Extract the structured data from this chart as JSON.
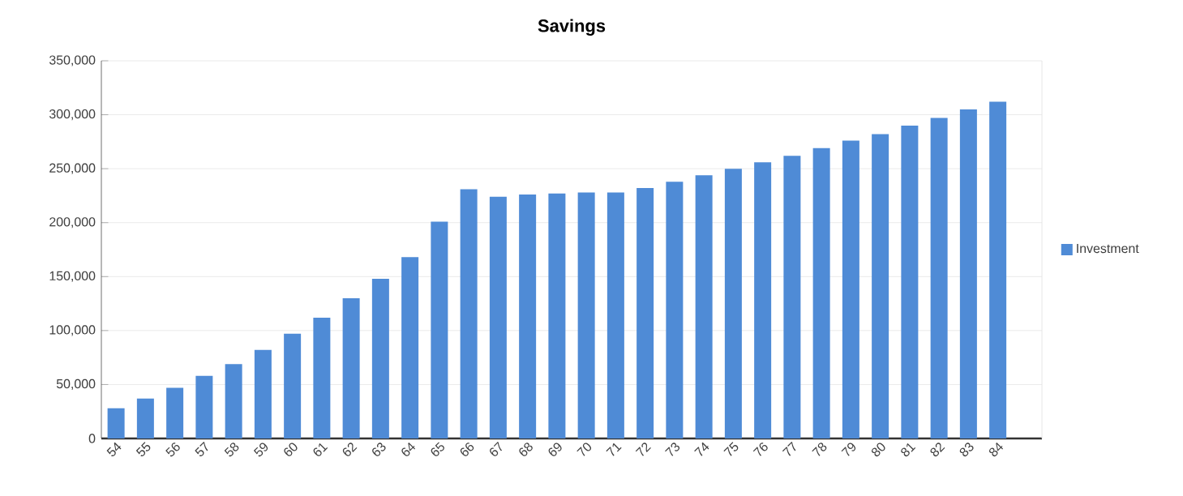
{
  "chart_data": {
    "type": "bar",
    "title": "Savings",
    "categories": [
      "54",
      "55",
      "56",
      "57",
      "58",
      "59",
      "60",
      "61",
      "62",
      "63",
      "64",
      "65",
      "66",
      "67",
      "68",
      "69",
      "70",
      "71",
      "72",
      "73",
      "74",
      "75",
      "76",
      "77",
      "78",
      "79",
      "80",
      "81",
      "82",
      "83",
      "84"
    ],
    "series": [
      {
        "name": "Investment",
        "color": "#4f8bd6",
        "values": [
          28000,
          37000,
          47000,
          58000,
          69000,
          82000,
          97000,
          112000,
          130000,
          148000,
          168000,
          201000,
          231000,
          224000,
          226000,
          227000,
          228000,
          228000,
          232000,
          238000,
          244000,
          250000,
          256000,
          262000,
          269000,
          276000,
          282000,
          290000,
          297000,
          305000,
          312000
        ]
      }
    ],
    "ylim": [
      0,
      350000
    ],
    "yticks": [
      0,
      {
        "value": 50000,
        "label": "50,000"
      },
      {
        "value": 100000,
        "label": "100,000"
      },
      {
        "value": 150000,
        "label": "150,000"
      },
      {
        "value": 200000,
        "label": "200,000"
      },
      {
        "value": 250000,
        "label": "250,000"
      },
      {
        "value": 300000,
        "label": "300,000"
      },
      {
        "value": 350000,
        "label": "350,000"
      }
    ],
    "grid": "y",
    "legend": "right"
  }
}
